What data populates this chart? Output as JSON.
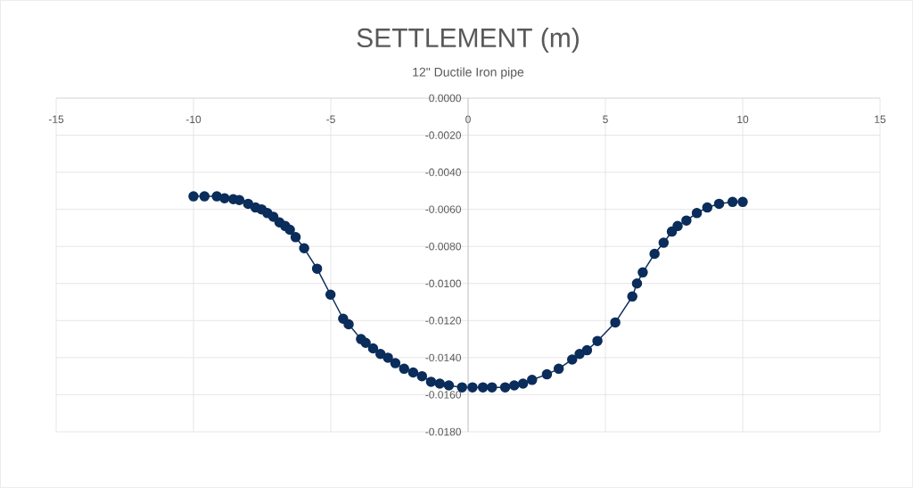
{
  "chart_data": {
    "type": "line",
    "title": "SETTLEMENT (m)",
    "subtitle": "12\" Ductile Iron pipe",
    "x": [
      -10,
      -9.6,
      -9.15,
      -8.87,
      -8.55,
      -8.33,
      -8.01,
      -7.74,
      -7.52,
      -7.31,
      -7.09,
      -6.87,
      -6.66,
      -6.49,
      -6.28,
      -5.97,
      -5.5,
      -5.01,
      -4.55,
      -4.35,
      -3.9,
      -3.73,
      -3.46,
      -3.19,
      -2.92,
      -2.65,
      -2.33,
      -2.0,
      -1.68,
      -1.35,
      -1.03,
      -0.7,
      -0.22,
      0.16,
      0.54,
      0.87,
      1.35,
      1.68,
      2.0,
      2.33,
      2.87,
      3.3,
      3.79,
      4.06,
      4.33,
      4.71,
      5.36,
      5.98,
      6.15,
      6.36,
      6.79,
      7.12,
      7.42,
      7.63,
      7.95,
      8.33,
      8.71,
      9.14,
      9.63,
      10.0
    ],
    "series": [
      {
        "color": "#0b2d5b",
        "values": [
          -0.0053,
          -0.0053,
          -0.0053,
          -0.0054,
          -0.00545,
          -0.0055,
          -0.0057,
          -0.0059,
          -0.006,
          -0.0062,
          -0.0064,
          -0.0067,
          -0.0069,
          -0.0071,
          -0.0075,
          -0.0081,
          -0.0092,
          -0.0106,
          -0.0119,
          -0.0122,
          -0.013,
          -0.0132,
          -0.0135,
          -0.0138,
          -0.014,
          -0.0143,
          -0.0146,
          -0.0148,
          -0.015,
          -0.0153,
          -0.0154,
          -0.0155,
          -0.0156,
          -0.0156,
          -0.0156,
          -0.0156,
          -0.0156,
          -0.0155,
          -0.0154,
          -0.0152,
          -0.0149,
          -0.0146,
          -0.0141,
          -0.0138,
          -0.0136,
          -0.0131,
          -0.0121,
          -0.0107,
          -0.01,
          -0.0094,
          -0.0084,
          -0.0078,
          -0.0072,
          -0.0069,
          -0.0066,
          -0.0062,
          -0.0059,
          -0.0057,
          -0.0056,
          -0.0056
        ]
      }
    ],
    "xlim": [
      -15,
      15
    ],
    "xticks": [
      -15,
      -10,
      -5,
      0,
      5,
      10,
      15
    ],
    "ylim": [
      -0.018,
      0
    ],
    "yticks": [
      {
        "value": -0.018,
        "label": "-0.0180"
      },
      {
        "value": -0.016,
        "label": "-0.0160"
      },
      {
        "value": -0.014,
        "label": "-0.0140"
      },
      {
        "value": -0.012,
        "label": "-0.0120"
      },
      {
        "value": -0.01,
        "label": "-0.0100"
      },
      {
        "value": -0.008,
        "label": "-0.0080"
      },
      {
        "value": -0.006,
        "label": "-0.0060"
      },
      {
        "value": -0.004,
        "label": "-0.0040"
      },
      {
        "value": -0.002,
        "label": "-0.0020"
      },
      {
        "value": 0,
        "label": "0.0000"
      }
    ],
    "grid": true,
    "marker": "circle",
    "line_style": "solid"
  }
}
